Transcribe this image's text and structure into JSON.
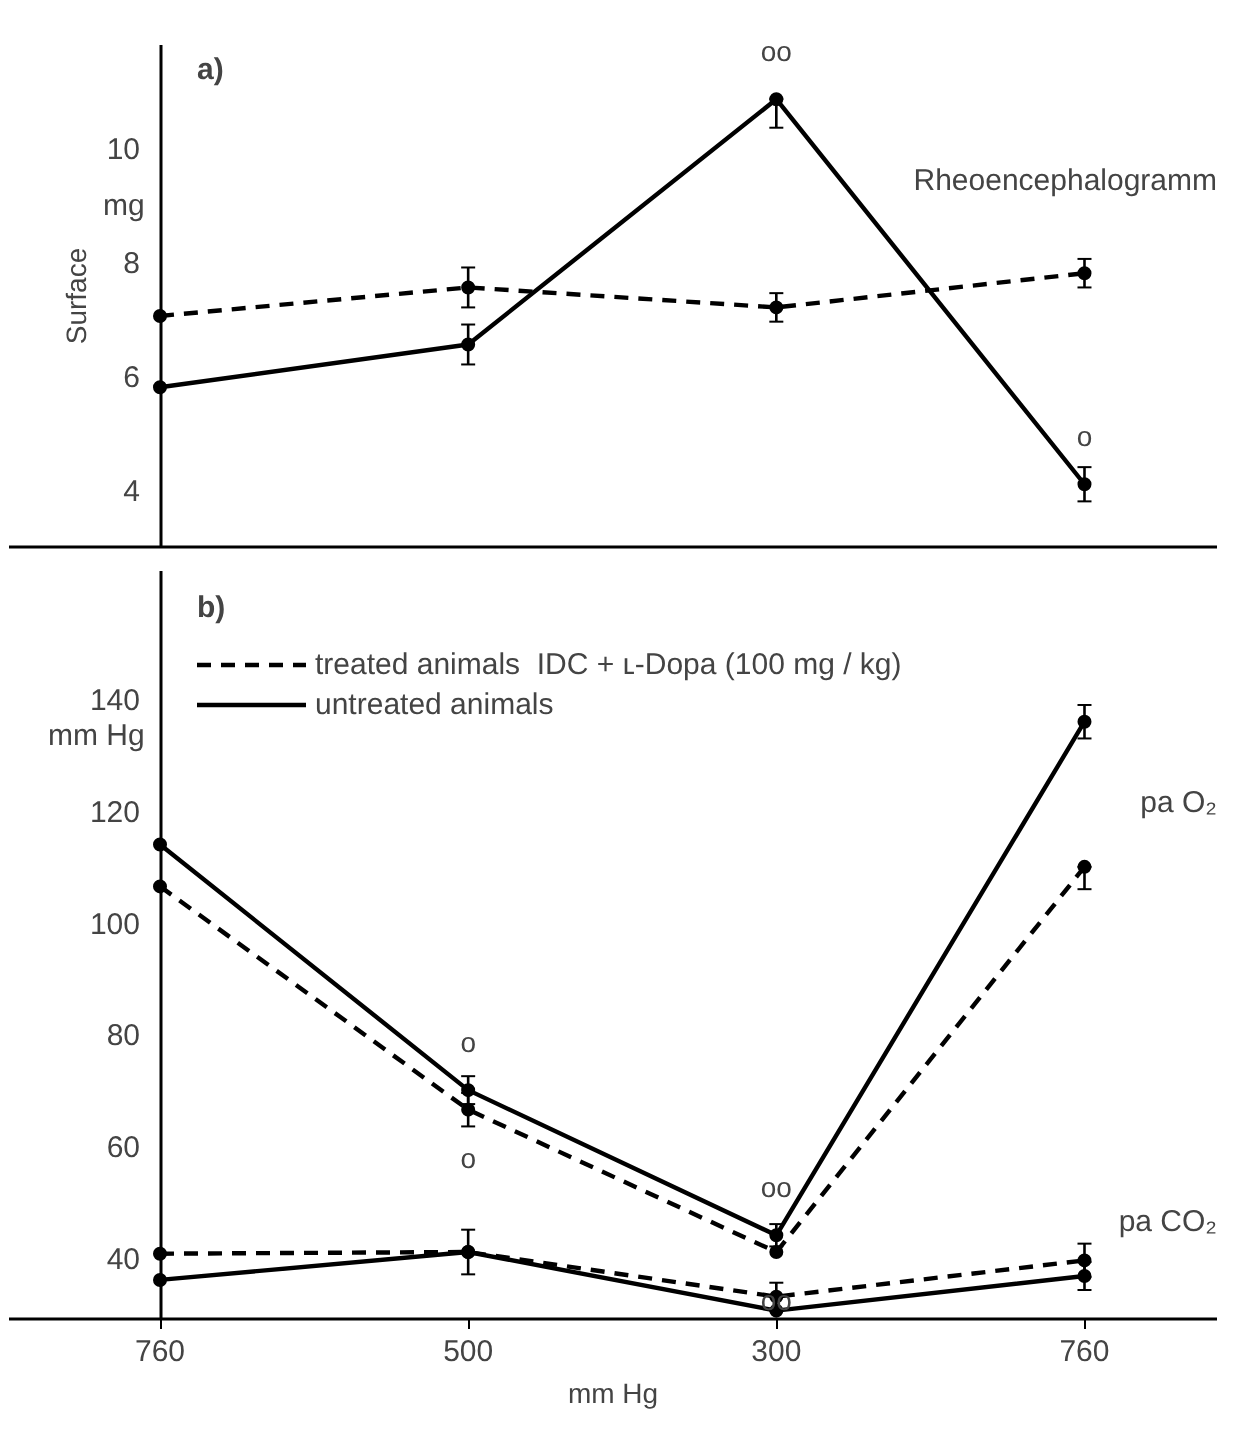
{
  "chart_data": [
    {
      "type": "line",
      "title": "a)",
      "ylabel": "Surface",
      "categories": [
        "760",
        "500",
        "300",
        "760"
      ],
      "ylim": [
        3,
        11.8
      ],
      "yticks": [
        4,
        6,
        8,
        10
      ],
      "tick_labels": "y",
      "grid": false,
      "legend": false,
      "marker": "circle",
      "series": [
        {
          "color": "#000000",
          "line_style": "dashed",
          "values": [
            7.05,
            7.55,
            7.2,
            7.8
          ],
          "errors": [
            null,
            0.35,
            0.25,
            0.25
          ]
        },
        {
          "color": "#000000",
          "line_style": "solid",
          "values": [
            5.8,
            6.55,
            10.85,
            4.1
          ],
          "errors": [
            null,
            0.35,
            [
              10.35,
              10.85
            ],
            0.3
          ],
          "value_labels": [
            null,
            null,
            "oo",
            "o"
          ]
        }
      ],
      "annotations": [
        "mg",
        "Rheoencephalogramm"
      ]
    },
    {
      "type": "line",
      "title": "b)",
      "xlabel": "mm Hg",
      "categories": [
        "760",
        "500",
        "300",
        "760"
      ],
      "ylim": [
        29,
        163
      ],
      "yticks": [
        40,
        60,
        80,
        100,
        120,
        140
      ],
      "grid": false,
      "legend": "top left",
      "marker": "circle",
      "series": [
        {
          "name": "treated animals  IDC + ʟ-Dopa (100 mg / kg)",
          "color": "#000000",
          "line_style": "dashed",
          "values": [
            106.5,
            66.5,
            41,
            110
          ],
          "errors": [
            null,
            3,
            null,
            [
              106,
              110
            ]
          ],
          "value_labels": [
            null,
            "o",
            "oo",
            null
          ]
        },
        {
          "name": "untreated animals",
          "color": "#000000",
          "line_style": "solid",
          "values": [
            114,
            70,
            44,
            136
          ],
          "errors": [
            null,
            2.5,
            2,
            3
          ],
          "value_labels": [
            null,
            "o",
            "oo",
            null
          ]
        },
        {
          "color": "#000000",
          "line_style": "dashed",
          "values": [
            40.7,
            41,
            33,
            39.5
          ],
          "errors": [
            null,
            null,
            2.5,
            3
          ]
        },
        {
          "color": "#000000",
          "line_style": "solid",
          "values": [
            36,
            41,
            30.5,
            36.7
          ],
          "errors": [
            null,
            4,
            null,
            2.5
          ]
        }
      ],
      "annotations": [
        "mm Hg",
        "pa O₂",
        "pa CO₂"
      ]
    }
  ]
}
